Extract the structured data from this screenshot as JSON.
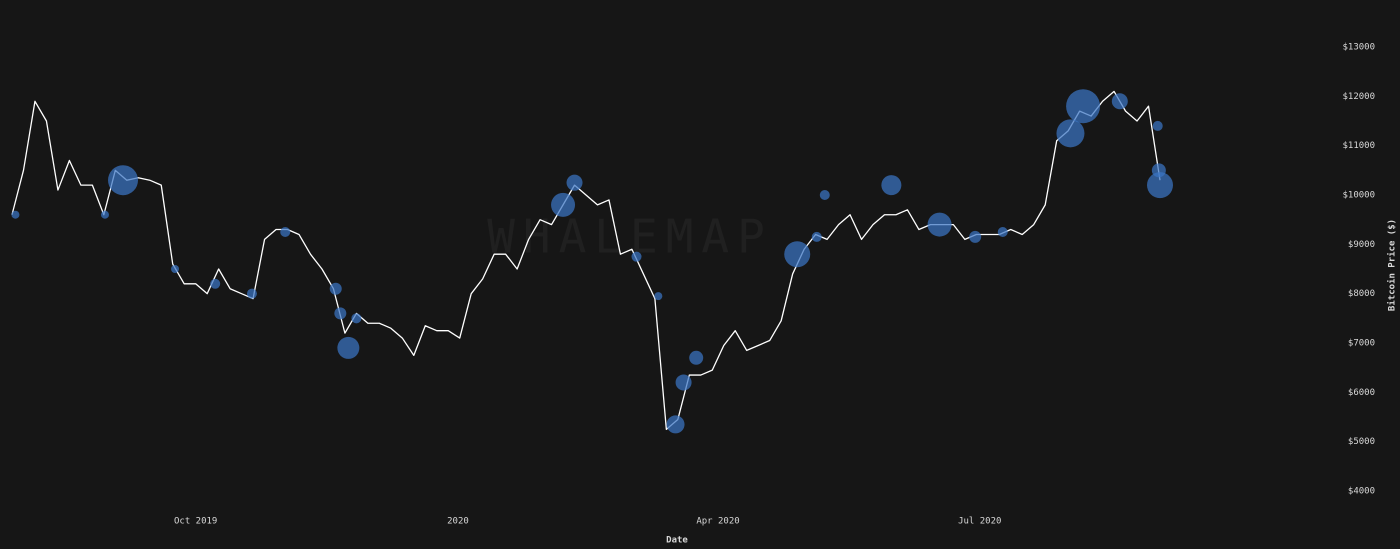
{
  "chart_data": {
    "type": "line",
    "watermark": "WHALEMAP",
    "x_label": "Date",
    "y_label": "Bitcoin Price ($)",
    "xlim": [
      0,
      100
    ],
    "ylim": [
      4000,
      13000
    ],
    "xticks": [
      {
        "value": 16,
        "label": "Oct 2019"
      },
      {
        "value": 38.85,
        "label": "2020"
      },
      {
        "value": 61.5,
        "label": "Apr 2020"
      },
      {
        "value": 84.3,
        "label": "Jul 2020"
      }
    ],
    "yticks": [
      {
        "value": 4000,
        "label": "$4000"
      },
      {
        "value": 5000,
        "label": "$5000"
      },
      {
        "value": 6000,
        "label": "$6000"
      },
      {
        "value": 7000,
        "label": "$7000"
      },
      {
        "value": 8000,
        "label": "$8000"
      },
      {
        "value": 9000,
        "label": "$9000"
      },
      {
        "value": 10000,
        "label": "$10000"
      },
      {
        "value": 11000,
        "label": "$11000"
      },
      {
        "value": 12000,
        "label": "$12000"
      },
      {
        "value": 13000,
        "label": "$13000"
      }
    ],
    "series": [
      {
        "type": "line",
        "color": "#ffffff",
        "values": [
          9600,
          10500,
          11900,
          11500,
          10100,
          10700,
          10200,
          10200,
          9600,
          10500,
          10300,
          10350,
          10300,
          10200,
          8600,
          8200,
          8200,
          8000,
          8500,
          8100,
          8000,
          7900,
          9100,
          9300,
          9300,
          9200,
          8800,
          8500,
          8100,
          7200,
          7600,
          7400,
          7400,
          7300,
          7100,
          6750,
          7350,
          7250,
          7250,
          7100,
          8000,
          8300,
          8800,
          8800,
          8500,
          9100,
          9500,
          9400,
          9800,
          10200,
          10000,
          9800,
          9900,
          8800,
          8900,
          8400,
          7900,
          5250,
          5450,
          6350,
          6350,
          6450,
          6950,
          7250,
          6850,
          6950,
          7050,
          7450,
          8400,
          8900,
          9200,
          9100,
          9400,
          9600,
          9100,
          9400,
          9600,
          9600,
          9700,
          9300,
          9400,
          9400,
          9400,
          9100,
          9200,
          9200,
          9200,
          9300,
          9200,
          9400,
          9800,
          11100,
          11300,
          11700,
          11600,
          11900,
          12100,
          11700,
          11500,
          11800,
          10300
        ]
      },
      {
        "type": "bubble",
        "color": "#3a75c4",
        "x": [
          9.67,
          48,
          49,
          29.3,
          28.6,
          28.2,
          68.4,
          76.6,
          80.8,
          92.2,
          93.3,
          100,
          99.9,
          96.5,
          57.8,
          58.5,
          59.6,
          83.9,
          86.3,
          23.8,
          17.7,
          20.9,
          70.8,
          99.8,
          30,
          56.3,
          54.4,
          0.3,
          8.1,
          14.2,
          70.1
        ],
        "values": [
          10300,
          9800,
          10250,
          6900,
          7600,
          8100,
          8800,
          10200,
          9400,
          11250,
          11800,
          10200,
          10500,
          11900,
          5350,
          6200,
          6700,
          9150,
          9250,
          9250,
          8200,
          8000,
          10000,
          11400,
          7500,
          7950,
          8750,
          9600,
          9600,
          8500,
          9150
        ],
        "sizes": [
          15,
          12,
          8,
          11,
          6,
          6,
          13,
          10,
          12,
          14,
          17,
          13,
          7,
          8,
          9,
          8,
          7,
          6,
          5,
          5,
          5,
          5,
          5,
          5,
          5,
          4,
          5,
          4,
          4,
          4,
          5
        ]
      }
    ]
  }
}
